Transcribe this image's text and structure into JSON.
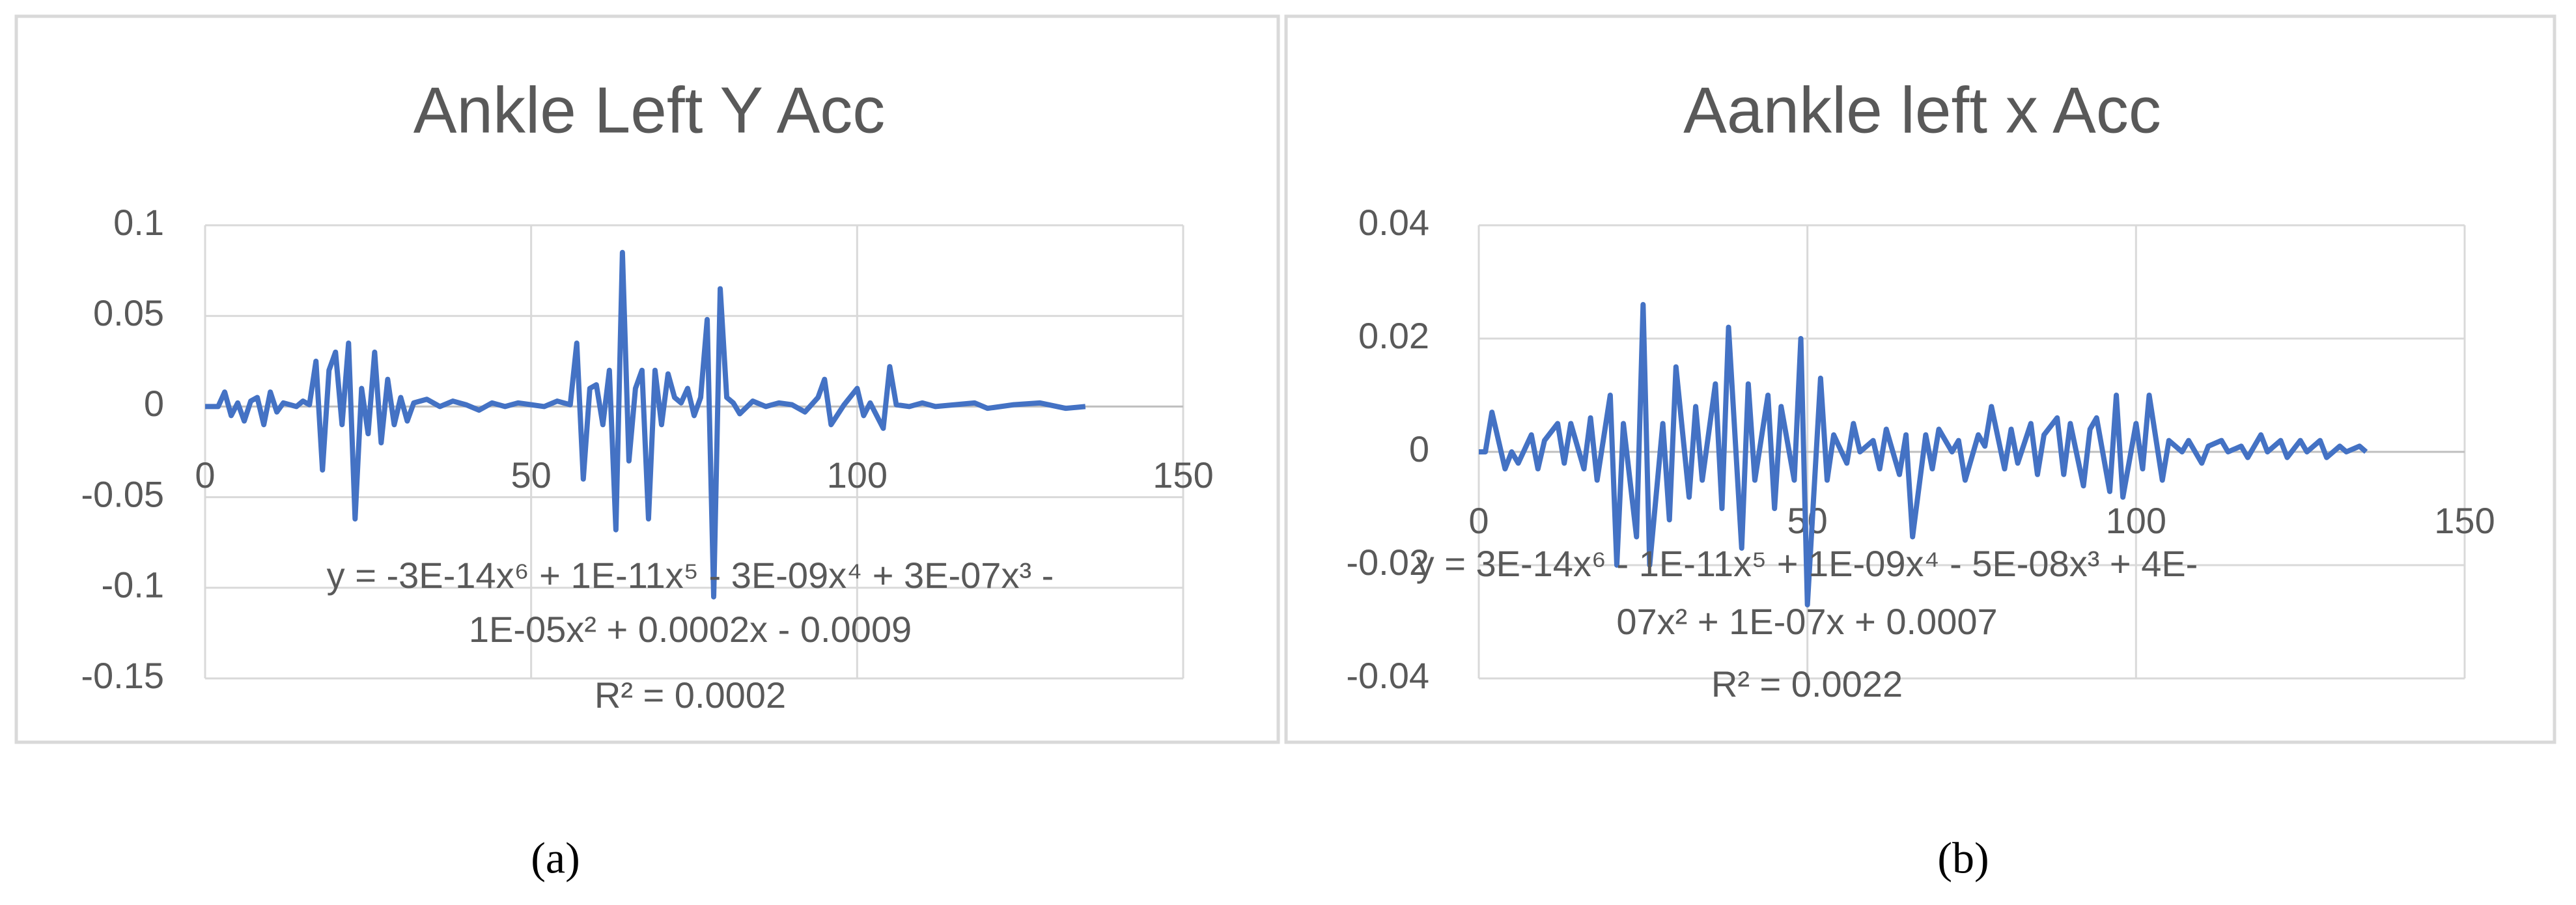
{
  "chart_data": [
    {
      "type": "line",
      "title": "Ankle Left  Y  Acc",
      "x": [
        0,
        2,
        3,
        4,
        5,
        6,
        7,
        8,
        9,
        10,
        11,
        12,
        13,
        14,
        15,
        16,
        17,
        18,
        19,
        20,
        21,
        22,
        23,
        24,
        25,
        26,
        27,
        28,
        29,
        30,
        31,
        32,
        34,
        36,
        38,
        40,
        42,
        44,
        46,
        48,
        50,
        52,
        54,
        56,
        57,
        58,
        59,
        60,
        61,
        62,
        63,
        64,
        65,
        66,
        67,
        68,
        69,
        70,
        71,
        72,
        73,
        74,
        75,
        76,
        77,
        78,
        79,
        80,
        81,
        82,
        84,
        86,
        88,
        90,
        92,
        94,
        95,
        96,
        98,
        100,
        101,
        102,
        104,
        105,
        106,
        108,
        110,
        112,
        115,
        118,
        120,
        124,
        128,
        132,
        135
      ],
      "series": [
        {
          "name": "Ankle Left  Y  Acc",
          "color": "#4472c4",
          "values": [
            0,
            0,
            0.008,
            -0.005,
            0.002,
            -0.008,
            0.003,
            0.005,
            -0.01,
            0.008,
            -0.003,
            0.002,
            0.001,
            0,
            0.003,
            0.001,
            0.025,
            -0.035,
            0.02,
            0.03,
            -0.01,
            0.035,
            -0.062,
            0.01,
            -0.015,
            0.03,
            -0.02,
            0.015,
            -0.01,
            0.005,
            -0.008,
            0.002,
            0.004,
            0,
            0.003,
            0.001,
            -0.002,
            0.002,
            0,
            0.002,
            0.001,
            0,
            0.003,
            0.001,
            0.035,
            -0.04,
            0.01,
            0.012,
            -0.01,
            0.02,
            -0.068,
            0.085,
            -0.03,
            0.01,
            0.02,
            -0.062,
            0.02,
            -0.01,
            0.018,
            0.005,
            0.002,
            0.01,
            -0.005,
            0.005,
            0.048,
            -0.105,
            0.065,
            0.005,
            0.002,
            -0.004,
            0.003,
            0,
            0.002,
            0.001,
            -0.003,
            0.005,
            0.015,
            -0.01,
            0.001,
            0.01,
            -0.005,
            0.002,
            -0.012,
            0.022,
            0.001,
            0,
            0.002,
            0,
            0.001,
            0.002,
            -0.001,
            0.001,
            0.002,
            -0.001,
            0
          ]
        }
      ],
      "xlim": [
        0,
        150
      ],
      "xticks": [
        0,
        50,
        100,
        150
      ],
      "ylim": [
        -0.15,
        0.1
      ],
      "yticks": [
        -0.15,
        -0.1,
        -0.05,
        0,
        0.05,
        0.1
      ],
      "grid": true,
      "annotation": [
        "y = -3E-14x⁶ + 1E-11x⁵ - 3E-09x⁴ + 3E-07x³ -",
        "1E-05x² + 0.0002x - 0.0009",
        "R² = 0.0002"
      ],
      "caption": "(a)"
    },
    {
      "type": "line",
      "title": "Aankle left x Acc",
      "x": [
        0,
        1,
        2,
        4,
        5,
        6,
        8,
        9,
        10,
        12,
        13,
        14,
        16,
        17,
        18,
        20,
        21,
        22,
        24,
        25,
        26,
        28,
        29,
        30,
        32,
        33,
        34,
        36,
        37,
        38,
        40,
        41,
        42,
        44,
        45,
        46,
        48,
        49,
        50,
        52,
        53,
        54,
        56,
        57,
        58,
        60,
        61,
        62,
        64,
        65,
        66,
        68,
        69,
        70,
        72,
        73,
        74,
        76,
        77,
        78,
        80,
        81,
        82,
        84,
        85,
        86,
        88,
        89,
        90,
        92,
        93,
        94,
        96,
        97,
        98,
        100,
        101,
        102,
        104,
        105,
        107,
        108,
        110,
        111,
        113,
        114,
        116,
        117,
        119,
        120,
        122,
        123,
        125,
        126,
        128,
        129,
        131,
        132,
        134,
        135
      ],
      "series": [
        {
          "name": "Aankle left x Acc",
          "color": "#4472c4",
          "values": [
            0,
            0,
            0.007,
            -0.003,
            0,
            -0.002,
            0.003,
            -0.003,
            0.002,
            0.005,
            -0.002,
            0.005,
            -0.003,
            0.006,
            -0.005,
            0.01,
            -0.02,
            0.005,
            -0.015,
            0.026,
            -0.02,
            0.005,
            -0.012,
            0.015,
            -0.008,
            0.008,
            -0.005,
            0.012,
            -0.01,
            0.022,
            -0.017,
            0.012,
            -0.005,
            0.01,
            -0.01,
            0.008,
            -0.005,
            0.02,
            -0.027,
            0.013,
            -0.005,
            0.003,
            -0.002,
            0.005,
            0,
            0.002,
            -0.003,
            0.004,
            -0.004,
            0.003,
            -0.015,
            0.003,
            -0.003,
            0.004,
            0,
            0.002,
            -0.005,
            0.003,
            0.001,
            0.008,
            -0.003,
            0.004,
            -0.002,
            0.005,
            -0.004,
            0.003,
            0.006,
            -0.004,
            0.005,
            -0.006,
            0.004,
            0.006,
            -0.007,
            0.01,
            -0.008,
            0.005,
            -0.003,
            0.01,
            -0.005,
            0.002,
            0,
            0.002,
            -0.002,
            0.001,
            0.002,
            0,
            0.001,
            -0.001,
            0.003,
            0,
            0.002,
            -0.001,
            0.002,
            0,
            0.002,
            -0.001,
            0.001,
            0,
            0.001,
            0
          ]
        }
      ],
      "xlim": [
        0,
        150
      ],
      "xticks": [
        0,
        50,
        100,
        150
      ],
      "ylim": [
        -0.04,
        0.04
      ],
      "yticks": [
        -0.04,
        -0.02,
        0,
        0.02,
        0.04
      ],
      "grid": true,
      "annotation": [
        "y = 3E-14x⁶ - 1E-11x⁵ + 1E-09x⁴ - 5E-08x³ + 4E-",
        "07x² + 1E-07x + 0.0007",
        "R² = 0.0022"
      ],
      "caption": "(b)"
    }
  ]
}
